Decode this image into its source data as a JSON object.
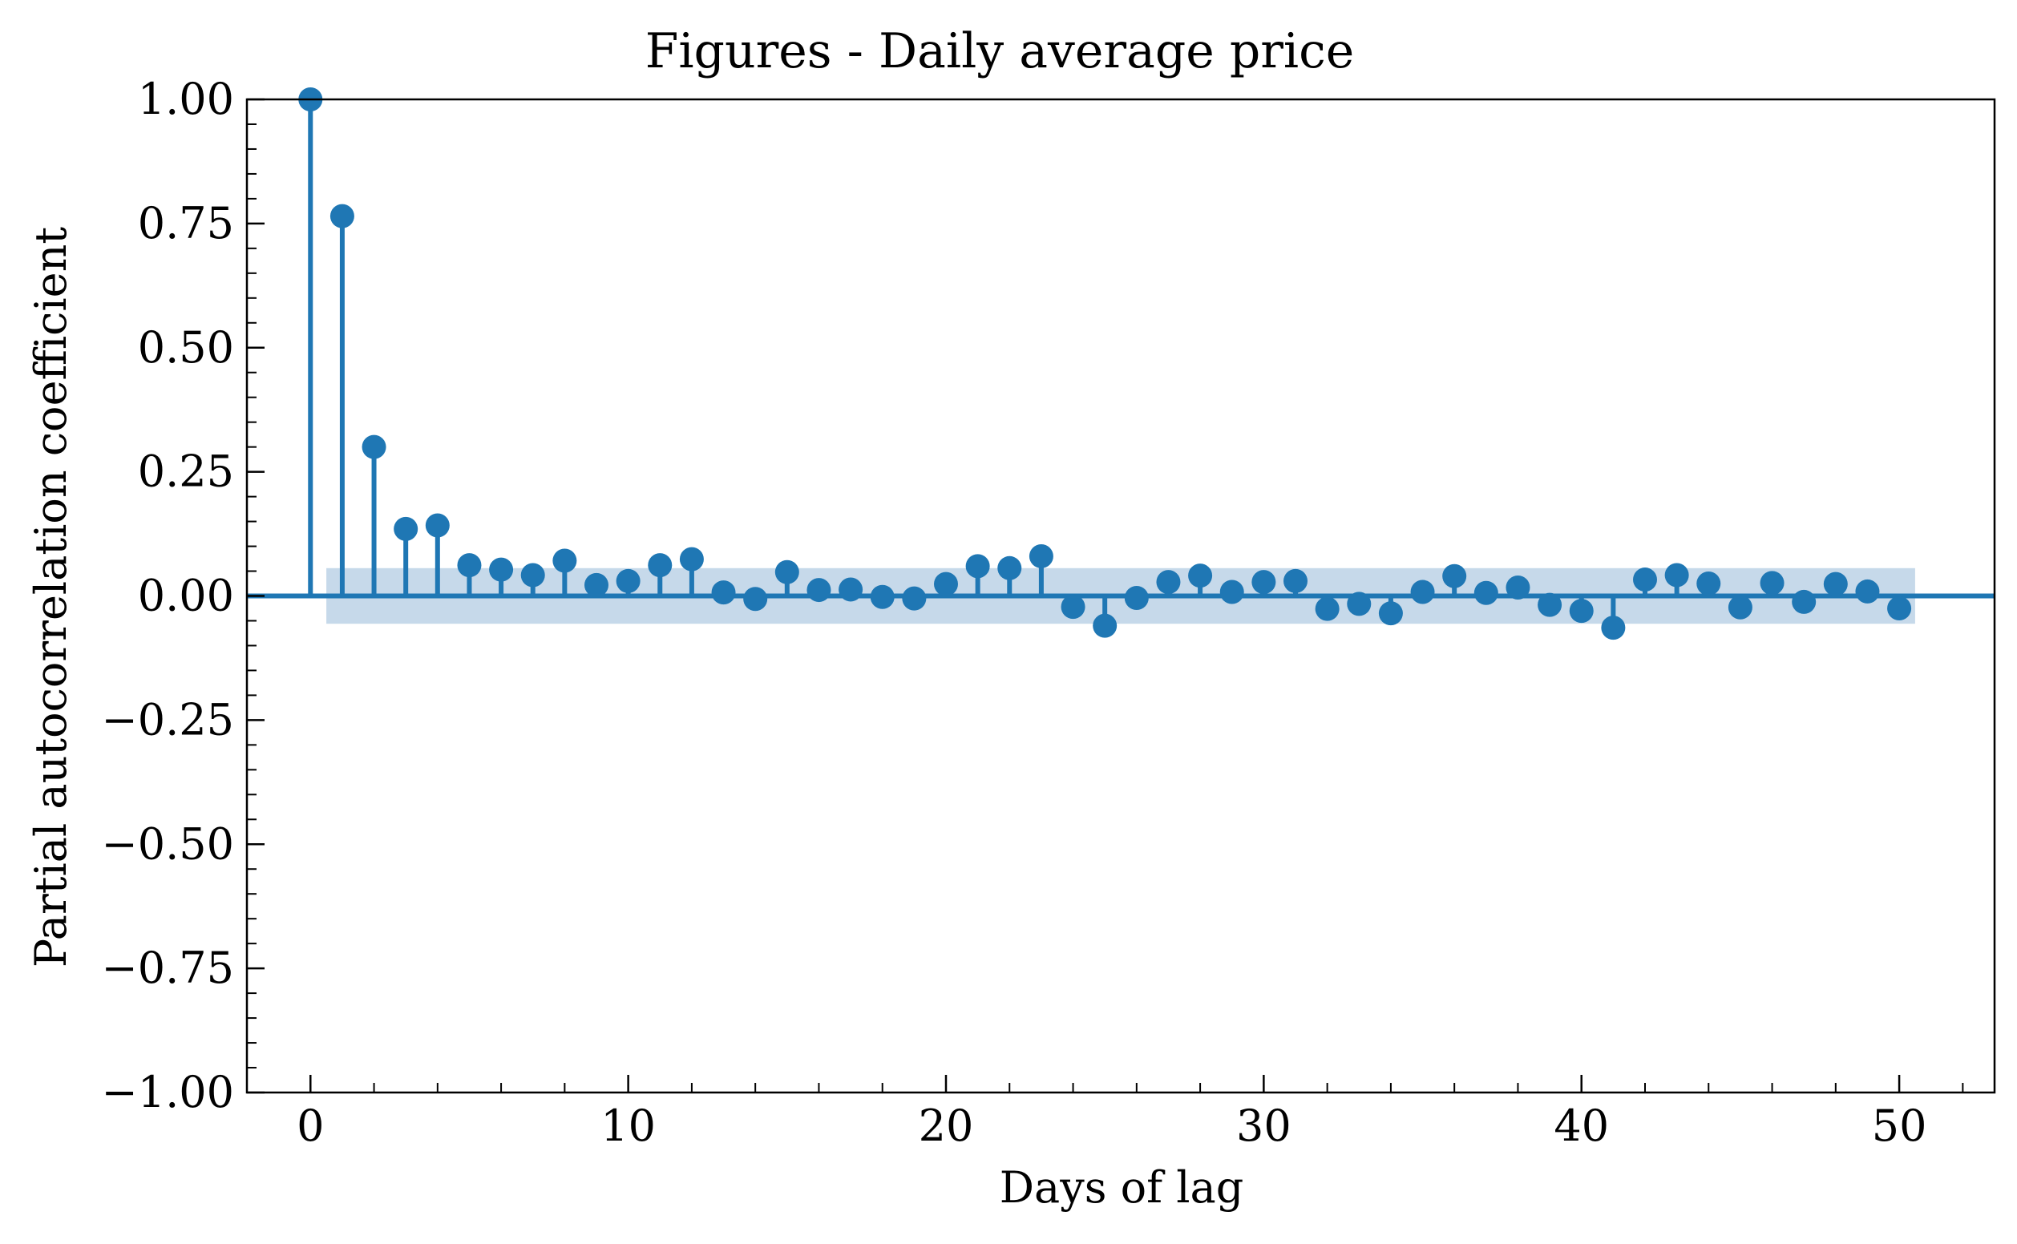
{
  "colors": {
    "series": "#1f77b4",
    "confidence_band": "#c6d9ea",
    "axes": "#000000",
    "background": "#ffffff"
  },
  "chart_data": {
    "type": "scatter",
    "subtype": "stem",
    "title": "Figures - Daily average price",
    "xlabel": "Days of lag",
    "ylabel": "Partial autocorrelation coefficient",
    "xlim": [
      -2,
      53
    ],
    "ylim": [
      -1.0,
      1.0
    ],
    "xticks": [
      0,
      10,
      20,
      30,
      40,
      50
    ],
    "xtick_labels": [
      "0",
      "10",
      "20",
      "30",
      "40",
      "50"
    ],
    "yticks": [
      1.0,
      0.75,
      0.5,
      0.25,
      0.0,
      -0.25,
      -0.5,
      -0.75,
      -1.0
    ],
    "ytick_labels": [
      "1.00",
      "0.75",
      "0.50",
      "0.25",
      "0.00",
      "−0.25",
      "−0.50",
      "−0.75",
      "−1.00"
    ],
    "grid": false,
    "legend": false,
    "confidence_interval": {
      "x_range": [
        0.5,
        50.5
      ],
      "lower": -0.056,
      "upper": 0.056
    },
    "x": [
      0,
      1,
      2,
      3,
      4,
      5,
      6,
      7,
      8,
      9,
      10,
      11,
      12,
      13,
      14,
      15,
      16,
      17,
      18,
      19,
      20,
      21,
      22,
      23,
      24,
      25,
      26,
      27,
      28,
      29,
      30,
      31,
      32,
      33,
      34,
      35,
      36,
      37,
      38,
      39,
      40,
      41,
      42,
      43,
      44,
      45,
      46,
      47,
      48,
      49,
      50
    ],
    "values": [
      1.0,
      0.765,
      0.3,
      0.135,
      0.142,
      0.062,
      0.053,
      0.042,
      0.071,
      0.022,
      0.03,
      0.062,
      0.074,
      0.007,
      -0.006,
      0.048,
      0.012,
      0.013,
      -0.002,
      -0.005,
      0.024,
      0.06,
      0.056,
      0.08,
      -0.022,
      -0.06,
      -0.004,
      0.028,
      0.041,
      0.008,
      0.028,
      0.03,
      -0.026,
      -0.016,
      -0.035,
      0.008,
      0.04,
      0.006,
      0.017,
      -0.018,
      -0.03,
      -0.064,
      0.033,
      0.042,
      0.025,
      -0.023,
      0.026,
      -0.012,
      0.024,
      0.009,
      -0.025
    ]
  }
}
